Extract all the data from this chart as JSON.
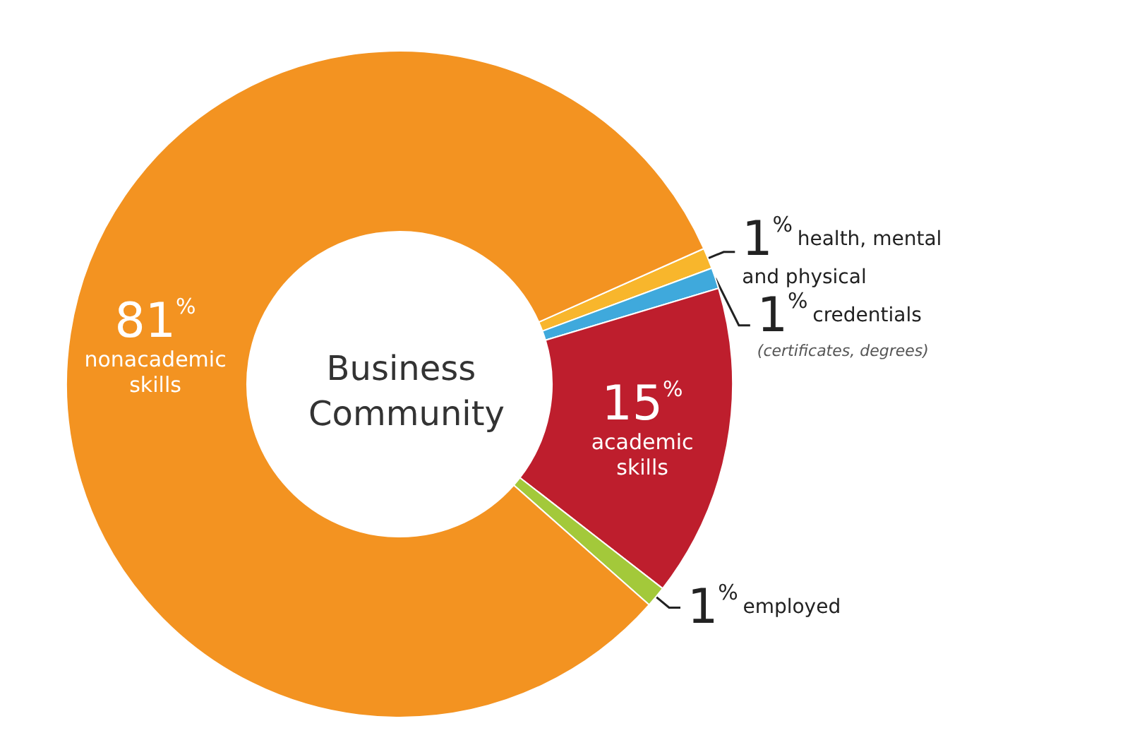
{
  "chart_data": {
    "type": "donut",
    "title": "Business Community",
    "categories": [
      "health, mental and physical",
      "credentials (certificates, degrees)",
      "academic skills",
      "employed",
      "nonacademic skills"
    ],
    "values": [
      1,
      1,
      15,
      1,
      81
    ],
    "colors": [
      "#f8b62c",
      "#3fa9dc",
      "#be1e2d",
      "#a3c93a",
      "#f39321"
    ],
    "value_labels": [
      "1%",
      "1%",
      "15%",
      "1%",
      "81%"
    ],
    "legend": false
  }
}
